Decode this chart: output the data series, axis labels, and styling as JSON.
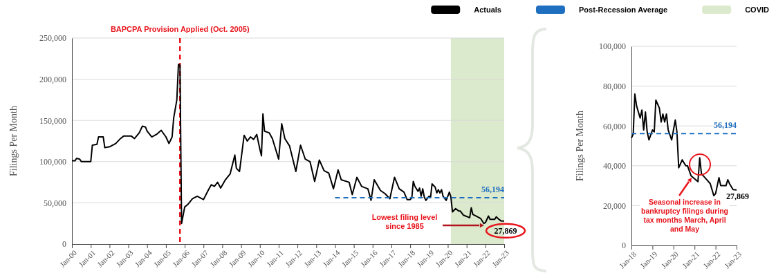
{
  "chart_data": [
    {
      "type": "line",
      "ylabel": "Filings Per Month",
      "legend": "top right",
      "grid": "y",
      "marker": "none",
      "xlim": [
        "2000-01",
        "2023-01"
      ],
      "xticks": [
        {
          "value": "2000-01",
          "label": "Jan-00"
        },
        {
          "value": "2001-01",
          "label": "Jan-01"
        },
        {
          "value": "2002-01",
          "label": "Jan-02"
        },
        {
          "value": "2003-01",
          "label": "Jan-03"
        },
        {
          "value": "2004-01",
          "label": "Jan-04"
        },
        {
          "value": "2005-01",
          "label": "Jan-05"
        },
        {
          "value": "2006-01",
          "label": "Jan-06"
        },
        {
          "value": "2007-01",
          "label": "Jan-07"
        },
        {
          "value": "2008-01",
          "label": "Jan-08"
        },
        {
          "value": "2009-01",
          "label": "Jan-09"
        },
        {
          "value": "2010-01",
          "label": "Jan-10"
        },
        {
          "value": "2011-01",
          "label": "Jan-11"
        },
        {
          "value": "2012-01",
          "label": "Jan-12"
        },
        {
          "value": "2013-01",
          "label": "Jan-13"
        },
        {
          "value": "2014-01",
          "label": "Jan-14"
        },
        {
          "value": "2015-01",
          "label": "Jan-15"
        },
        {
          "value": "2016-01",
          "label": "Jan-16"
        },
        {
          "value": "2017-01",
          "label": "Jan-17"
        },
        {
          "value": "2018-01",
          "label": "Jan-18"
        },
        {
          "value": "2019-01",
          "label": "Jan-19"
        },
        {
          "value": "2020-01",
          "label": "Jan-20"
        },
        {
          "value": "2021-01",
          "label": "Jan-21"
        },
        {
          "value": "2022-01",
          "label": "Jan-22"
        },
        {
          "value": "2023-01",
          "label": "Jan-23"
        }
      ],
      "ylim": [
        0,
        250000
      ],
      "yticks": [
        0,
        {
          "value": 50000,
          "label": "50,000"
        },
        {
          "value": 100000,
          "label": "100,000"
        },
        {
          "value": 150000,
          "label": "150,000"
        },
        {
          "value": 200000,
          "label": "200,000"
        },
        {
          "value": 250000,
          "label": "250,000"
        }
      ],
      "series": [
        {
          "name": "Actuals",
          "color": "#000000",
          "line_style": "solid",
          "x": [
            "2000-01",
            "2000-03",
            "2000-04",
            "2000-06",
            "2000-07",
            "2001-01",
            "2001-02",
            "2001-05",
            "2001-06",
            "2001-09",
            "2001-10",
            "2002-01",
            "2002-05",
            "2002-08",
            "2002-10",
            "2003-03",
            "2003-05",
            "2003-08",
            "2003-10",
            "2003-12",
            "2004-01",
            "2004-04",
            "2004-07",
            "2004-10",
            "2005-01",
            "2005-03",
            "2005-05",
            "2005-06",
            "2005-08",
            "2005-09",
            "2005-10",
            "2005-11",
            "2006-01",
            "2006-03",
            "2006-06",
            "2006-09",
            "2007-01",
            "2007-04",
            "2007-06",
            "2007-08",
            "2007-10",
            "2007-12",
            "2008-03",
            "2008-06",
            "2008-09",
            "2008-10",
            "2008-12",
            "2009-03",
            "2009-05",
            "2009-07",
            "2009-09",
            "2009-11",
            "2010-01",
            "2010-02",
            "2010-03",
            "2010-04",
            "2010-07",
            "2010-09",
            "2011-01",
            "2011-03",
            "2011-05",
            "2011-08",
            "2011-12",
            "2012-03",
            "2012-06",
            "2012-09",
            "2012-12",
            "2013-03",
            "2013-06",
            "2013-09",
            "2013-12",
            "2014-03",
            "2014-05",
            "2014-10",
            "2014-12",
            "2015-03",
            "2015-06",
            "2015-10",
            "2015-12",
            "2016-02",
            "2016-06",
            "2016-09",
            "2016-12",
            "2017-03",
            "2017-06",
            "2017-09",
            "2017-11",
            "2018-01",
            "2018-02",
            "2018-03",
            "2018-04",
            "2018-06",
            "2018-07",
            "2018-08",
            "2018-09",
            "2018-10",
            "2018-11",
            "2019-01",
            "2019-02",
            "2019-03",
            "2019-05",
            "2019-06",
            "2019-07",
            "2019-08",
            "2019-09",
            "2019-10",
            "2019-12",
            "2020-01",
            "2020-02",
            "2020-03",
            "2020-04",
            "2020-06",
            "2020-08",
            "2020-09",
            "2020-11",
            "2021-03",
            "2021-04",
            "2021-05",
            "2021-08",
            "2021-10",
            "2021-12",
            "2022-01",
            "2022-03",
            "2022-04",
            "2022-07",
            "2022-08",
            "2022-09",
            "2022-11",
            "2023-01"
          ],
          "values": [
            101000,
            101000,
            104000,
            103000,
            100000,
            100000,
            120000,
            121000,
            130000,
            130000,
            117000,
            118000,
            122000,
            128000,
            131000,
            131000,
            128000,
            135000,
            143000,
            142000,
            137000,
            130000,
            133000,
            138000,
            130000,
            122000,
            130000,
            153000,
            175000,
            218000,
            217000,
            25000,
            45000,
            48000,
            55000,
            58000,
            54000,
            65000,
            72000,
            70000,
            75000,
            68000,
            78000,
            85000,
            108000,
            92000,
            88000,
            132000,
            125000,
            130000,
            127000,
            133000,
            115000,
            107000,
            158000,
            137000,
            135000,
            128000,
            103000,
            146000,
            128000,
            119000,
            88000,
            120000,
            103000,
            100000,
            76000,
            102000,
            89000,
            86000,
            67000,
            90000,
            78000,
            75000,
            60000,
            81000,
            70000,
            67000,
            53000,
            78000,
            65000,
            61000,
            55000,
            81000,
            67000,
            63000,
            54000,
            54000,
            56000,
            76000,
            70000,
            64000,
            68000,
            58000,
            67000,
            57000,
            53000,
            58000,
            57000,
            73000,
            69000,
            62000,
            66000,
            62000,
            66000,
            58000,
            53000,
            58000,
            63000,
            57000,
            39000,
            43000,
            40000,
            40000,
            35000,
            32000,
            44000,
            36000,
            33000,
            31000,
            25000,
            26000,
            34000,
            30000,
            30000,
            33000,
            31000,
            28000,
            27869
          ]
        },
        {
          "name": "Post-Recession Average",
          "color": "#1f6fc0",
          "line_style": "dashed",
          "x": [
            "2014-01",
            "2023-01"
          ],
          "values": [
            56194,
            56194
          ]
        }
      ],
      "ref_lines": [
        {
          "axis": "x",
          "value": "2005-10",
          "label": "BAPCPA Provision Applied (Oct. 2005)",
          "color": "#e8141c",
          "line_style": "dashed"
        }
      ],
      "bands": [
        {
          "axis": "x",
          "from": "2020-03",
          "to": "2023-01",
          "label": "COVID",
          "color": "#dbe9cc"
        }
      ],
      "annotations": [
        "Lowest filing level since 1985",
        {
          "text": "27,869",
          "x": "2023-01",
          "y": 27869
        },
        {
          "text": "56,194",
          "x": "2023-01",
          "y": 56194
        }
      ]
    },
    {
      "type": "line",
      "ylabel": "Filings Per Month",
      "grid": "y",
      "marker": "none",
      "xlim": [
        "2018-01",
        "2023-01"
      ],
      "xticks": [
        {
          "value": "2018-01",
          "label": "Jan-18"
        },
        {
          "value": "2019-01",
          "label": "Jan-19"
        },
        {
          "value": "2020-01",
          "label": "Jan-20"
        },
        {
          "value": "2021-01",
          "label": "Jan-21"
        },
        {
          "value": "2022-01",
          "label": "Jan-22"
        },
        {
          "value": "2023-01",
          "label": "Jan-23"
        }
      ],
      "ylim": [
        0,
        100000
      ],
      "yticks": [
        0,
        {
          "value": 20000,
          "label": "20,000"
        },
        {
          "value": 40000,
          "label": "40,000"
        },
        {
          "value": 60000,
          "label": "60,000"
        },
        {
          "value": 80000,
          "label": "80,000"
        },
        {
          "value": 100000,
          "label": "100,000"
        }
      ],
      "series": [
        {
          "color": "#000000",
          "line_style": "solid",
          "x": [
            "2018-01",
            "2018-02",
            "2018-03",
            "2018-04",
            "2018-06",
            "2018-07",
            "2018-08",
            "2018-09",
            "2018-10",
            "2018-11",
            "2019-01",
            "2019-02",
            "2019-03",
            "2019-05",
            "2019-06",
            "2019-07",
            "2019-08",
            "2019-09",
            "2019-10",
            "2019-12",
            "2020-01",
            "2020-02",
            "2020-03",
            "2020-04",
            "2020-06",
            "2020-08",
            "2020-09",
            "2020-11",
            "2021-03",
            "2021-04",
            "2021-05",
            "2021-08",
            "2021-10",
            "2021-12",
            "2022-01",
            "2022-03",
            "2022-04",
            "2022-07",
            "2022-08",
            "2022-09",
            "2022-11",
            "2023-01"
          ],
          "values": [
            54000,
            56000,
            76000,
            70000,
            64000,
            68000,
            58000,
            67000,
            57000,
            53000,
            58000,
            57000,
            73000,
            69000,
            62000,
            66000,
            62000,
            66000,
            58000,
            53000,
            58000,
            63000,
            57000,
            39000,
            43000,
            40000,
            40000,
            35000,
            32000,
            44000,
            36000,
            33000,
            31000,
            25000,
            26000,
            34000,
            30000,
            30000,
            33000,
            31000,
            28000,
            27869
          ]
        },
        {
          "color": "#1f6fc0",
          "line_style": "dashed",
          "x": [
            "2018-01",
            "2023-01"
          ],
          "values": [
            56194,
            56194
          ]
        }
      ],
      "annotations": [
        "Seasonal increase in bankruptcy filings during tax months March, April and May",
        {
          "text": "27,869",
          "x": "2023-01",
          "y": 27869
        },
        {
          "text": "56,194",
          "x": "2023-01",
          "y": 56194
        }
      ]
    }
  ]
}
